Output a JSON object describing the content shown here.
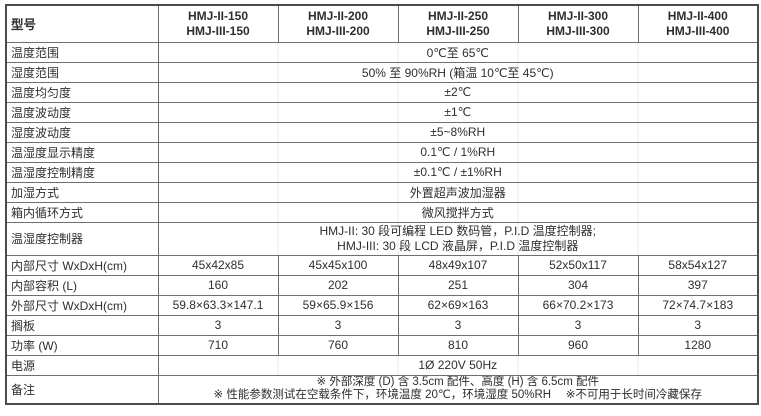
{
  "table": {
    "header": {
      "model_label": "型号",
      "models": [
        {
          "line1": "HMJ-II-150",
          "line2": "HMJ-III-150"
        },
        {
          "line1": "HMJ-II-200",
          "line2": "HMJ-III-200"
        },
        {
          "line1": "HMJ-II-250",
          "line2": "HMJ-III-250"
        },
        {
          "line1": "HMJ-II-300",
          "line2": "HMJ-III-300"
        },
        {
          "line1": "HMJ-II-400",
          "line2": "HMJ-III-400"
        }
      ]
    },
    "rows": [
      {
        "label": "温度范围",
        "value": "0℃至 65℃"
      },
      {
        "label": "湿度范围",
        "value": "50% 至 90%RH (箱温 10℃至 45℃)"
      },
      {
        "label": "温度均匀度",
        "value": "±2℃"
      },
      {
        "label": "温度波动度",
        "value": "±1℃"
      },
      {
        "label": "湿度波动度",
        "value": "±5~8%RH"
      },
      {
        "label": "温湿度显示精度",
        "value": "0.1℃ / 1%RH"
      },
      {
        "label": "温湿度控制精度",
        "value": "±0.1℃ / ±1%RH"
      },
      {
        "label": "加湿方式",
        "value": "外置超声波加湿器"
      },
      {
        "label": "箱内循环方式",
        "value": "微风搅拌方式"
      },
      {
        "label": "温湿度控制器",
        "line1": "HMJ-II: 30 段可编程 LED 数码管，P.I.D 温度控制器;",
        "line2": "HMJ-III: 30 段 LCD 液晶屏，P.I.D 温度控制器"
      },
      {
        "label": "内部尺寸 WxDxH(cm)",
        "values": [
          "45x42x85",
          "45x45x100",
          "48x49x107",
          "52x50x117",
          "58x54x127"
        ]
      },
      {
        "label": "内部容积 (L)",
        "values": [
          "160",
          "202",
          "251",
          "304",
          "397"
        ]
      },
      {
        "label": "外部尺寸 WxDxH(cm)",
        "values": [
          "59.8×63.3×147.1",
          "59×65.9×156",
          "62×69×163",
          "66×70.2×173",
          "72×74.7×183"
        ]
      },
      {
        "label": "搁板",
        "values": [
          "3",
          "3",
          "3",
          "3",
          "3"
        ]
      },
      {
        "label": "功率 (W)",
        "values": [
          "710",
          "760",
          "810",
          "960",
          "1280"
        ]
      },
      {
        "label": "电源",
        "value": "1Ø 220V 50Hz"
      },
      {
        "label": "备注",
        "line1": "※ 外部深度 (D) 含 3.5cm 配件、高度 (H) 含 6.5cm 配件",
        "line2": "※ 性能参数测试在空载条件下，环境温度 20℃，环境湿度 50%RH　 ※不可用于长时间冷藏保存"
      }
    ]
  }
}
